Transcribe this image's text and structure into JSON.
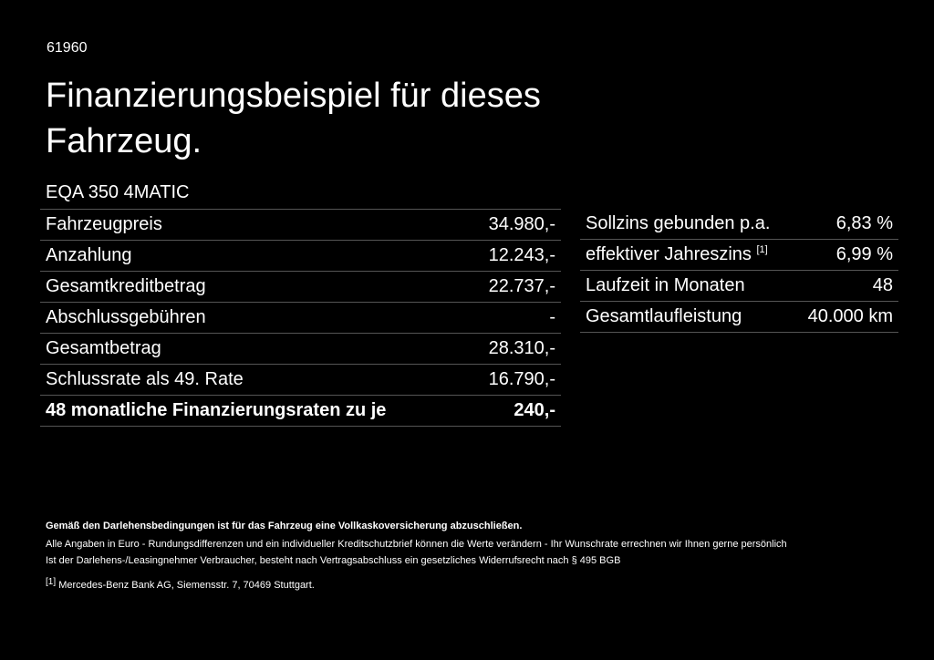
{
  "code": "61960",
  "title": "Finanzierungsbeispiel für dieses Fahrzeug.",
  "model": "EQA 350 4MATIC",
  "left_table": {
    "rows": [
      [
        "Fahrzeugpreis",
        "34.980,-"
      ],
      [
        "Anzahlung",
        "12.243,-"
      ],
      [
        "Gesamtkreditbetrag",
        "22.737,-"
      ],
      [
        "Abschlussgebühren",
        "-"
      ],
      [
        "Gesamtbetrag",
        "28.310,-"
      ],
      [
        "Schlussrate als 49. Rate",
        "16.790,-"
      ],
      [
        "48 monatliche Finanzierungsraten zu je",
        "240,-"
      ]
    ]
  },
  "right_table": {
    "rows": [
      {
        "label": "Sollzins gebunden p.a.",
        "value": "6,83 %"
      },
      {
        "label": "effektiver Jahreszins",
        "note": "[1]",
        "value": "6,99 %"
      },
      {
        "label": "Laufzeit in Monaten",
        "value": "48"
      },
      {
        "label": "Gesamtlaufleistung",
        "value": "40.000 km"
      }
    ]
  },
  "notes": {
    "bold": "Gemäß den Darlehensbedingungen ist für das Fahrzeug eine Vollkaskoversicherung abzuschließen.",
    "lines": [
      "Alle Angaben in Euro - Rundungsdifferenzen und ein individueller Kreditschutzbrief können die Werte verändern - Ihr Wunschrate errechnen wir Ihnen gerne persönlich",
      "Ist der Darlehens-/Leasingnehmer Verbraucher, besteht nach Vertragsabschluss ein gesetzliches Widerrufsrecht nach § 495 BGB"
    ],
    "footnote": {
      "mark": "[1]",
      "text": "Mercedes-Benz Bank AG, Siemensstr. 7, 70469 Stuttgart."
    }
  }
}
